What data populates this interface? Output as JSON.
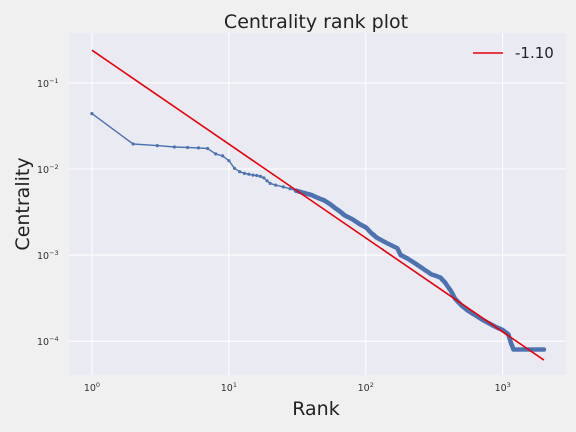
{
  "chart_data": {
    "type": "line",
    "title": "Centrality rank plot",
    "xlabel": "Rank",
    "ylabel": "Centrality",
    "xscale": "log",
    "yscale": "log",
    "xlim": [
      0.68,
      2900
    ],
    "ylim": [
      4.05e-05,
      0.38
    ],
    "grid": true,
    "legend": "top-right",
    "x_ticks": [
      {
        "value": 1,
        "base": "10",
        "exp": "0"
      },
      {
        "value": 10,
        "base": "10",
        "exp": "1"
      },
      {
        "value": 100,
        "base": "10",
        "exp": "2"
      },
      {
        "value": 1000,
        "base": "10",
        "exp": "3"
      }
    ],
    "y_ticks": [
      {
        "value": 0.0001,
        "base": "10",
        "exp": "−4"
      },
      {
        "value": 0.001,
        "base": "10",
        "exp": "−3"
      },
      {
        "value": 0.01,
        "base": "10",
        "exp": "−2"
      },
      {
        "value": 0.1,
        "base": "10",
        "exp": "−1"
      }
    ],
    "series": [
      {
        "name": "",
        "color": "#4c72b0",
        "marker": "dot",
        "points": [
          [
            1,
            0.044
          ],
          [
            2,
            0.0195
          ],
          [
            3,
            0.0187
          ],
          [
            4,
            0.018
          ],
          [
            5,
            0.0178
          ],
          [
            6,
            0.0176
          ],
          [
            7,
            0.0173
          ],
          [
            8,
            0.015
          ],
          [
            9,
            0.0142
          ],
          [
            10,
            0.0125
          ],
          [
            11,
            0.0102
          ],
          [
            12,
            0.0093
          ],
          [
            13,
            0.0089
          ],
          [
            14,
            0.0087
          ],
          [
            15,
            0.0085
          ],
          [
            16,
            0.0084
          ],
          [
            17,
            0.0082
          ],
          [
            18,
            0.0079
          ],
          [
            19,
            0.0073
          ],
          [
            20,
            0.0068
          ],
          [
            22,
            0.0065
          ],
          [
            25,
            0.0062
          ],
          [
            28,
            0.0059
          ],
          [
            31,
            0.0056
          ],
          [
            35,
            0.0053
          ],
          [
            40,
            0.005
          ],
          [
            45,
            0.0046
          ],
          [
            50,
            0.0043
          ],
          [
            55,
            0.0039
          ],
          [
            60,
            0.0035
          ],
          [
            65,
            0.0032
          ],
          [
            70,
            0.0029
          ],
          [
            80,
            0.0026
          ],
          [
            90,
            0.0023
          ],
          [
            100,
            0.0021
          ],
          [
            110,
            0.0018
          ],
          [
            120,
            0.0016
          ],
          [
            140,
            0.0014
          ],
          [
            170,
            0.0012
          ],
          [
            180,
            0.001
          ],
          [
            200,
            0.00092
          ],
          [
            230,
            0.0008
          ],
          [
            260,
            0.0007
          ],
          [
            300,
            0.0006
          ],
          [
            350,
            0.00055
          ],
          [
            380,
            0.00048
          ],
          [
            420,
            0.00038
          ],
          [
            450,
            0.00031
          ],
          [
            500,
            0.00026
          ],
          [
            550,
            0.00023
          ],
          [
            600,
            0.00021
          ],
          [
            700,
            0.00018
          ],
          [
            800,
            0.00016
          ],
          [
            900,
            0.000145
          ],
          [
            1000,
            0.000135
          ],
          [
            1100,
            0.00012
          ],
          [
            1150,
            9.5e-05
          ],
          [
            1200,
            8e-05
          ],
          [
            1400,
            8e-05
          ],
          [
            1700,
            8e-05
          ],
          [
            2000,
            8e-05
          ]
        ]
      },
      {
        "name": "-1.10",
        "color": "#e8000b",
        "points": [
          [
            1,
            0.24
          ],
          [
            2000,
            6.04e-05
          ]
        ]
      }
    ]
  }
}
